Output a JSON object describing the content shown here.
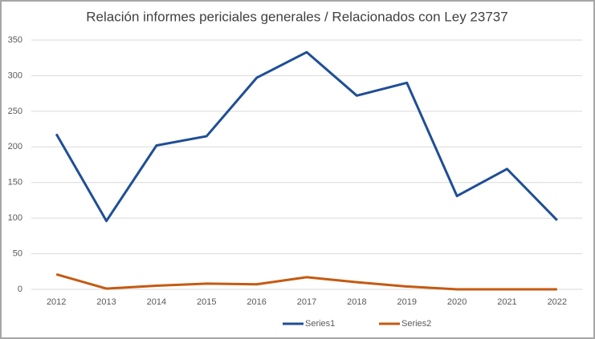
{
  "chart_data": {
    "type": "line",
    "title": "Relación informes periciales generales / Relacionados con Ley 23737",
    "categories": [
      "2012",
      "2013",
      "2014",
      "2015",
      "2016",
      "2017",
      "2018",
      "2019",
      "2020",
      "2021",
      "2022"
    ],
    "series": [
      {
        "name": "Series1",
        "color": "#1f4e96",
        "values": [
          218,
          96,
          202,
          215,
          297,
          333,
          272,
          290,
          131,
          169,
          97
        ]
      },
      {
        "name": "Series2",
        "color": "#c55a11",
        "values": [
          21,
          1,
          5,
          8,
          7,
          17,
          10,
          4,
          0,
          0,
          0
        ]
      }
    ],
    "ylim": [
      0,
      350
    ],
    "yticks": [
      0,
      50,
      100,
      150,
      200,
      250,
      300,
      350
    ],
    "grid": true,
    "legend": "bottom"
  }
}
